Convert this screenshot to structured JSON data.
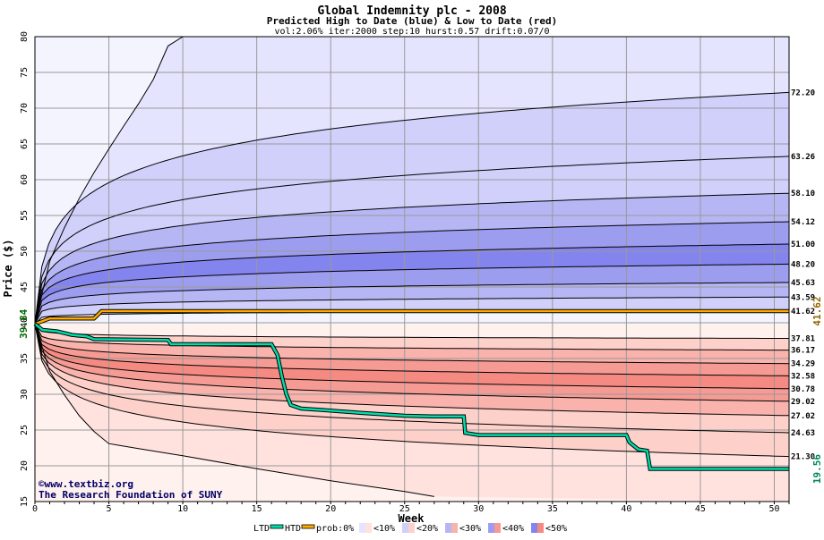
{
  "chart_data": {
    "type": "area",
    "title": "Global Indemnity plc - 2008",
    "subtitle": "Predicted High to Date (blue) &  Low to Date (red)",
    "params": "vol:2.06% iter:2000 step:10 hurst:0.57 drift:0.07/0",
    "xlabel": "Week",
    "ylabel": "Price ($)",
    "xlim": [
      0,
      51
    ],
    "ylim": [
      15,
      80
    ],
    "x_ticks": [
      0,
      5,
      10,
      15,
      20,
      25,
      30,
      35,
      40,
      45,
      50
    ],
    "y_ticks": [
      15,
      20,
      25,
      30,
      35,
      40,
      45,
      50,
      55,
      60,
      65,
      70,
      75,
      80
    ],
    "grid": true,
    "start_price": 39.84,
    "start_price_label": "39.84",
    "htd_label": "41.62",
    "ltd_label": "19.56",
    "htd_color": "#ffaa00",
    "ltd_color": "#00ddaa",
    "start_label_color": "#006600",
    "htd_label_color": "#996600",
    "ltd_label_color": "#008855",
    "colors": {
      "blue_0": "#f4f4ff",
      "blue_10": "#e4e4ff",
      "blue_20": "#d0d0fb",
      "blue_30": "#b6b6f4",
      "blue_40": "#9d9df0",
      "blue_50": "#8484ee",
      "red_0": "#fff1ee",
      "red_10": "#ffe2de",
      "red_20": "#fdd0ca",
      "red_30": "#f9b3ac",
      "red_40": "#f69b94",
      "red_50": "#f58a82"
    },
    "upper_curves": [
      {
        "label": "72.20",
        "end": 72.2,
        "k": 0.14
      },
      {
        "label": "63.26",
        "end": 63.26,
        "k": 0.097
      },
      {
        "label": "58.10",
        "end": 58.1,
        "k": 0.07
      },
      {
        "label": "54.12",
        "end": 54.12,
        "k": 0.051
      },
      {
        "label": "51.00",
        "end": 51.0,
        "k": 0.037
      },
      {
        "label": "48.20",
        "end": 48.2,
        "k": 0.0245
      },
      {
        "label": "45.63",
        "end": 45.63,
        "k": 0.0132
      },
      {
        "label": "43.59",
        "end": 43.59,
        "k": 0.0075
      },
      {
        "label": "41.62",
        "end": 41.62,
        "k": 0.003
      }
    ],
    "lower_curves": [
      {
        "label": "37.81",
        "end": 37.81,
        "k": 0.003
      },
      {
        "label": "36.17",
        "end": 36.17,
        "k": 0.006
      },
      {
        "label": "34.29",
        "end": 34.29,
        "k": 0.016
      },
      {
        "label": "32.58",
        "end": 32.58,
        "k": 0.023
      },
      {
        "label": "30.78",
        "end": 30.78,
        "k": 0.032
      },
      {
        "label": "29.02",
        "end": 29.02,
        "k": 0.042
      },
      {
        "label": "27.02",
        "end": 27.02,
        "k": 0.054
      },
      {
        "label": "24.63",
        "end": 24.63,
        "k": 0.07
      },
      {
        "label": "21.30",
        "end": 21.3,
        "k": 0.1
      }
    ],
    "outer_upper": [
      [
        0,
        39.84
      ],
      [
        1,
        48.6
      ],
      [
        2,
        53.3
      ],
      [
        3,
        57.4
      ],
      [
        4,
        61.0
      ],
      [
        5,
        64.3
      ],
      [
        6,
        67.5
      ],
      [
        7,
        70.6
      ],
      [
        8,
        74.0
      ],
      [
        9,
        78.7
      ],
      [
        10,
        80.0
      ]
    ],
    "outer_lower": [
      [
        0,
        39.84
      ],
      [
        1,
        33.2
      ],
      [
        2,
        29.9
      ],
      [
        3,
        27.0
      ],
      [
        4,
        24.8
      ],
      [
        5,
        23.1
      ],
      [
        7,
        22.4
      ],
      [
        10,
        21.4
      ],
      [
        15,
        19.6
      ],
      [
        20,
        17.9
      ],
      [
        25,
        16.4
      ],
      [
        27,
        15.7
      ]
    ],
    "htd_series": [
      [
        0,
        39.84
      ],
      [
        1,
        40.6
      ],
      [
        4,
        40.6
      ],
      [
        4.5,
        41.62
      ],
      [
        51,
        41.62
      ]
    ],
    "ltd_series": [
      [
        0,
        39.84
      ],
      [
        0.5,
        39.0
      ],
      [
        1.5,
        38.8
      ],
      [
        2.5,
        38.3
      ],
      [
        3.5,
        38.1
      ],
      [
        4,
        37.7
      ],
      [
        9,
        37.6
      ],
      [
        9.2,
        37.0
      ],
      [
        16,
        37.0
      ],
      [
        16.4,
        35.5
      ],
      [
        16.7,
        32.5
      ],
      [
        17.0,
        30.0
      ],
      [
        17.3,
        28.5
      ],
      [
        18,
        28.0
      ],
      [
        19.5,
        27.8
      ],
      [
        22,
        27.4
      ],
      [
        25,
        27.0
      ],
      [
        26.8,
        26.9
      ],
      [
        29,
        26.9
      ],
      [
        29.1,
        24.6
      ],
      [
        30,
        24.3
      ],
      [
        36,
        24.3
      ],
      [
        40,
        24.3
      ],
      [
        40.2,
        23.3
      ],
      [
        40.8,
        22.3
      ],
      [
        41.4,
        22.1
      ],
      [
        41.6,
        19.56
      ],
      [
        51,
        19.56
      ]
    ],
    "credit_1": "©www.textbiz.org",
    "credit_2": "The Research Foundation of SUNY",
    "legend": {
      "ltd": "LTD",
      "htd": "HTD",
      "prob_prefix": "prob:",
      "items": [
        "0%",
        "<10%",
        "<20%",
        "<30%",
        "<40%",
        "<50%"
      ]
    }
  }
}
